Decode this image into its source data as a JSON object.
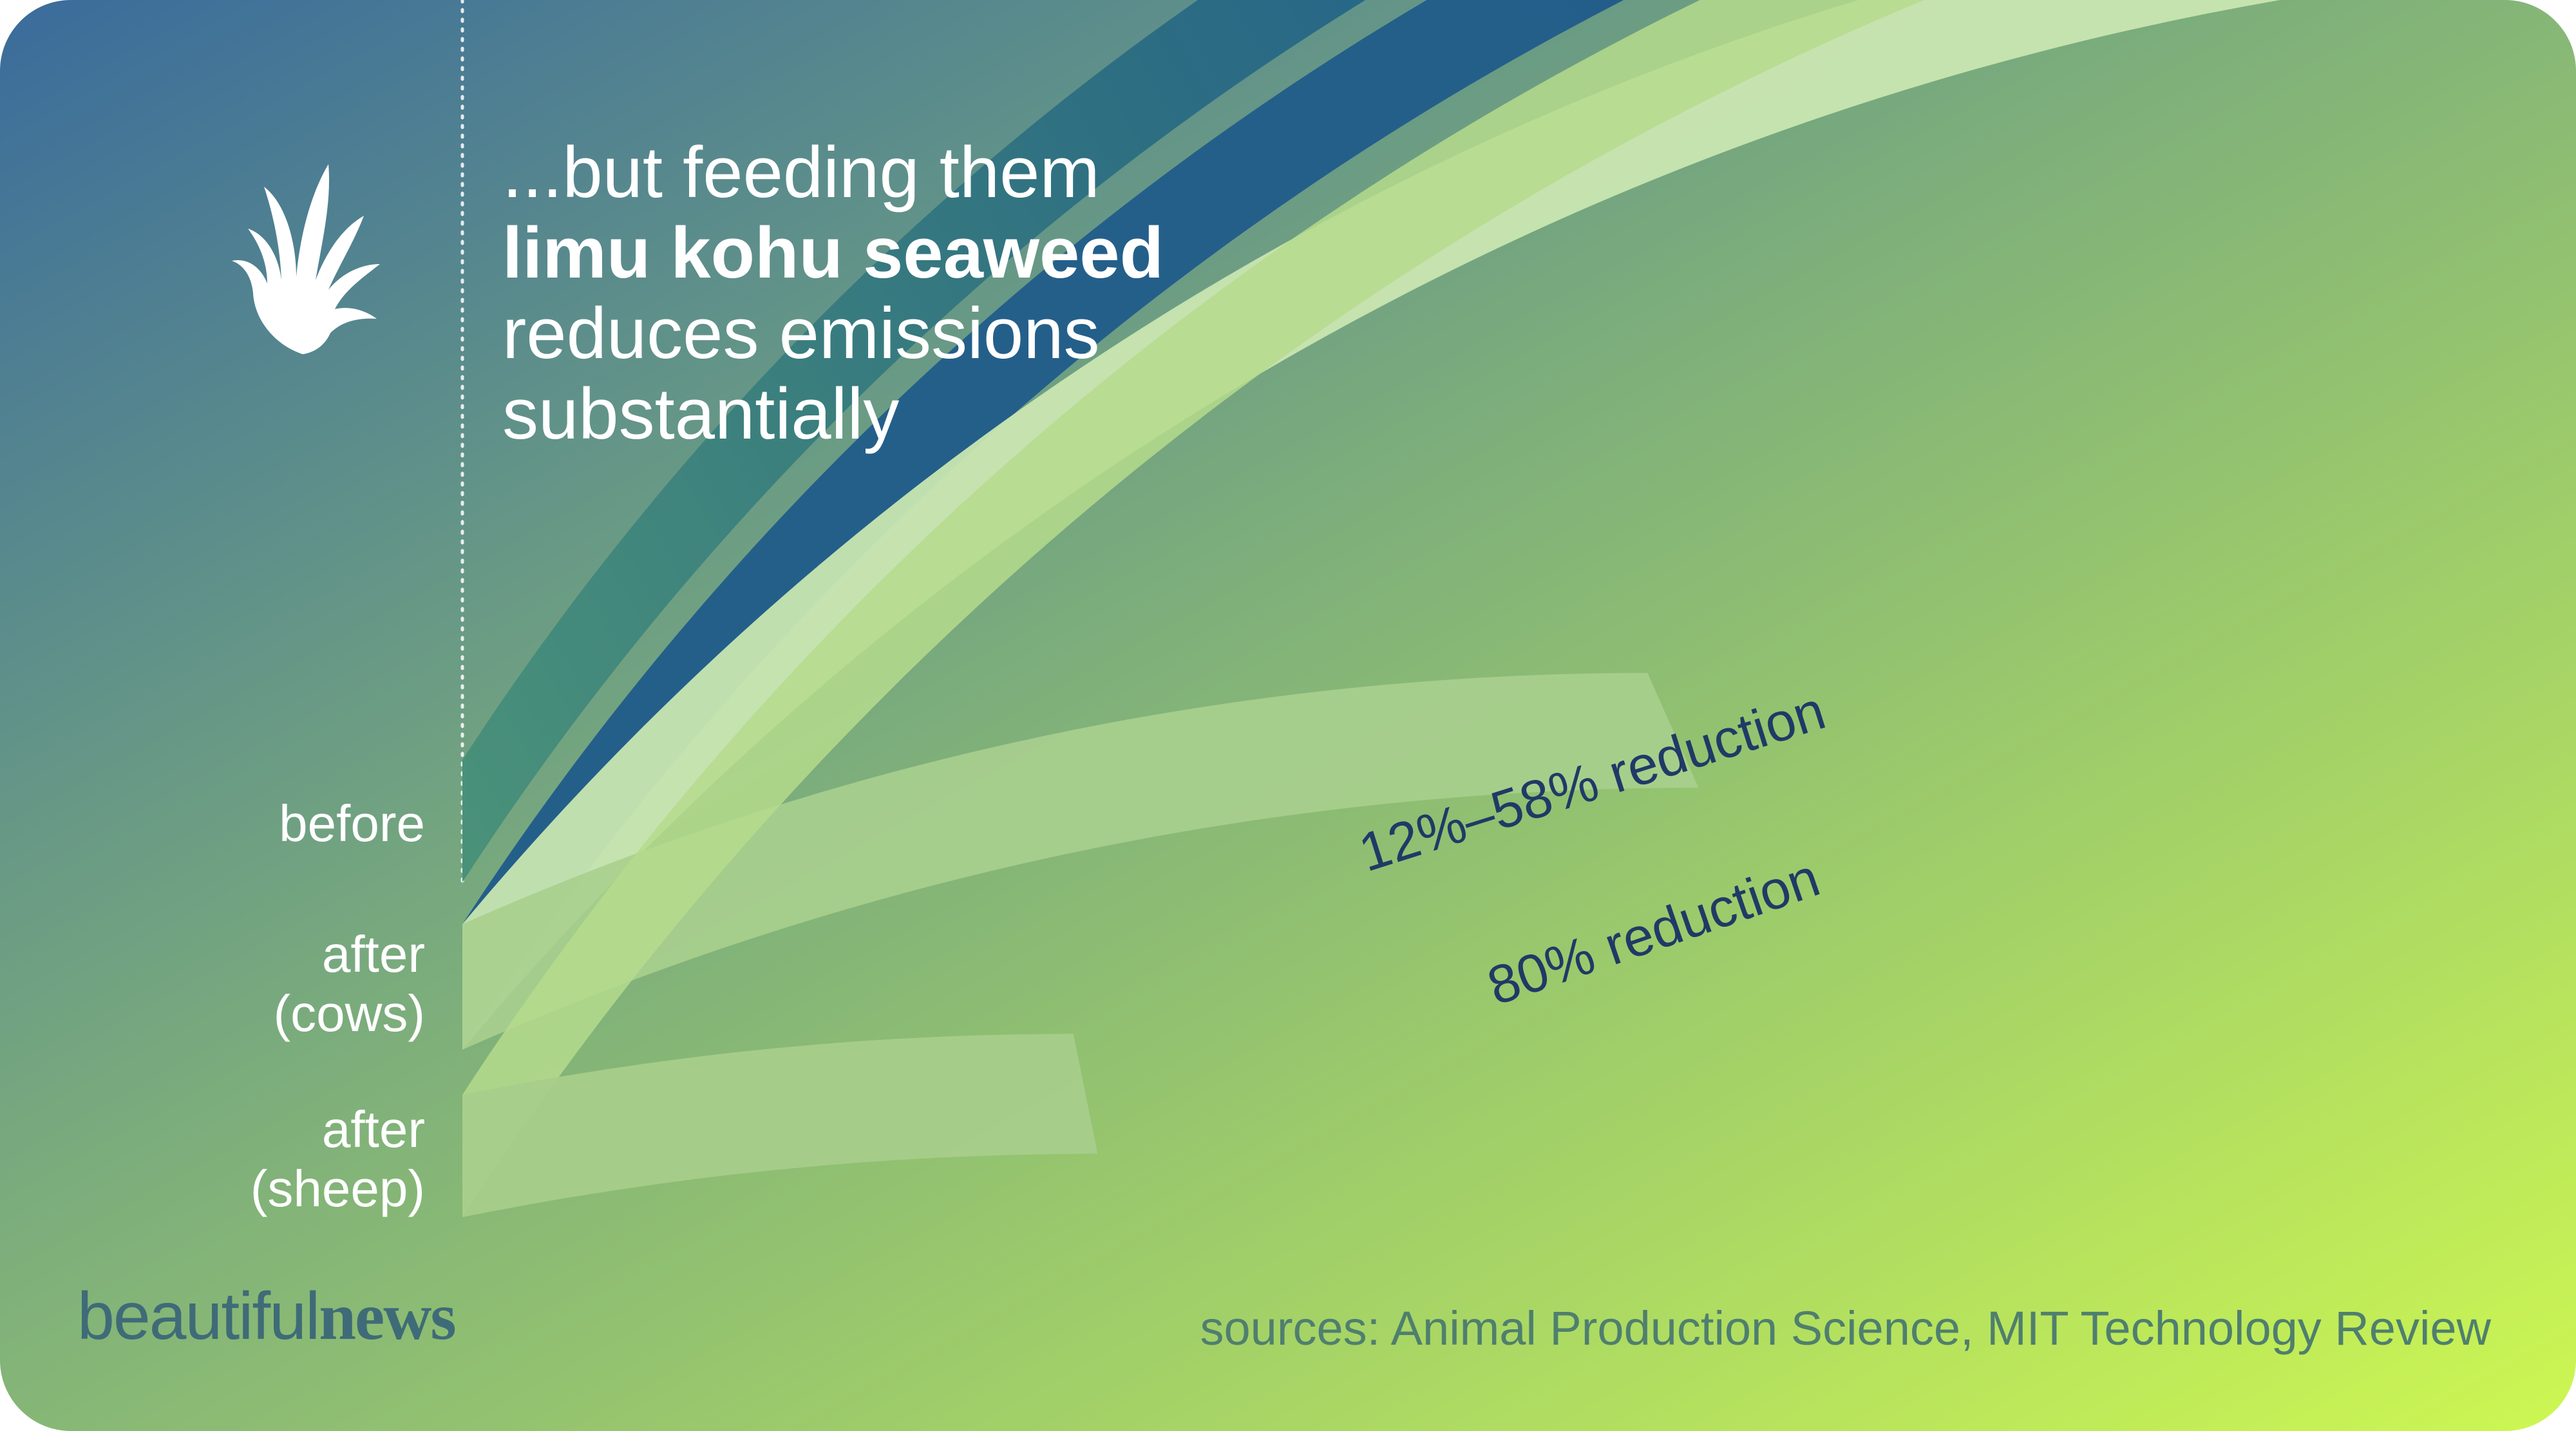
{
  "headline": {
    "line1": "...but feeding them",
    "line2_bold": "limu kohu seaweed",
    "line3": "reduces emissions",
    "line4": "substantially"
  },
  "chart_data": {
    "type": "bar",
    "layout": "radial-arc",
    "categories": [
      "before",
      "after\n(cows)",
      "after\n(sheep)"
    ],
    "baseline": 100,
    "series": [
      {
        "values": [
          100,
          42,
          20
        ]
      }
    ],
    "ranges": [
      {
        "category": "after\n(cows)",
        "reduction_min": 12,
        "reduction_max": 58,
        "label": "12%–58% reduction"
      },
      {
        "category": "after\n(sheep)",
        "reduction": 80,
        "label": "80% reduction"
      }
    ],
    "annotations": [
      "12%–58% reduction",
      "80% reduction"
    ]
  },
  "footer": {
    "logo_light": "beautiful",
    "logo_bold": "news",
    "sources": "sources: Animal Production Science, MIT Technology Review"
  },
  "colors": {
    "bg_top_left": "#3a6b9c",
    "bg_mid": "#7fb07a",
    "bg_bottom_right": "#cdf752",
    "before_band_start": "#4a917a",
    "before_band_end": "#1e5a92",
    "after_light": "#c8e6b0",
    "after_faded": "#b7da94",
    "annotation_text": "#1f3a66"
  },
  "icons": [
    "seaweed-icon"
  ]
}
